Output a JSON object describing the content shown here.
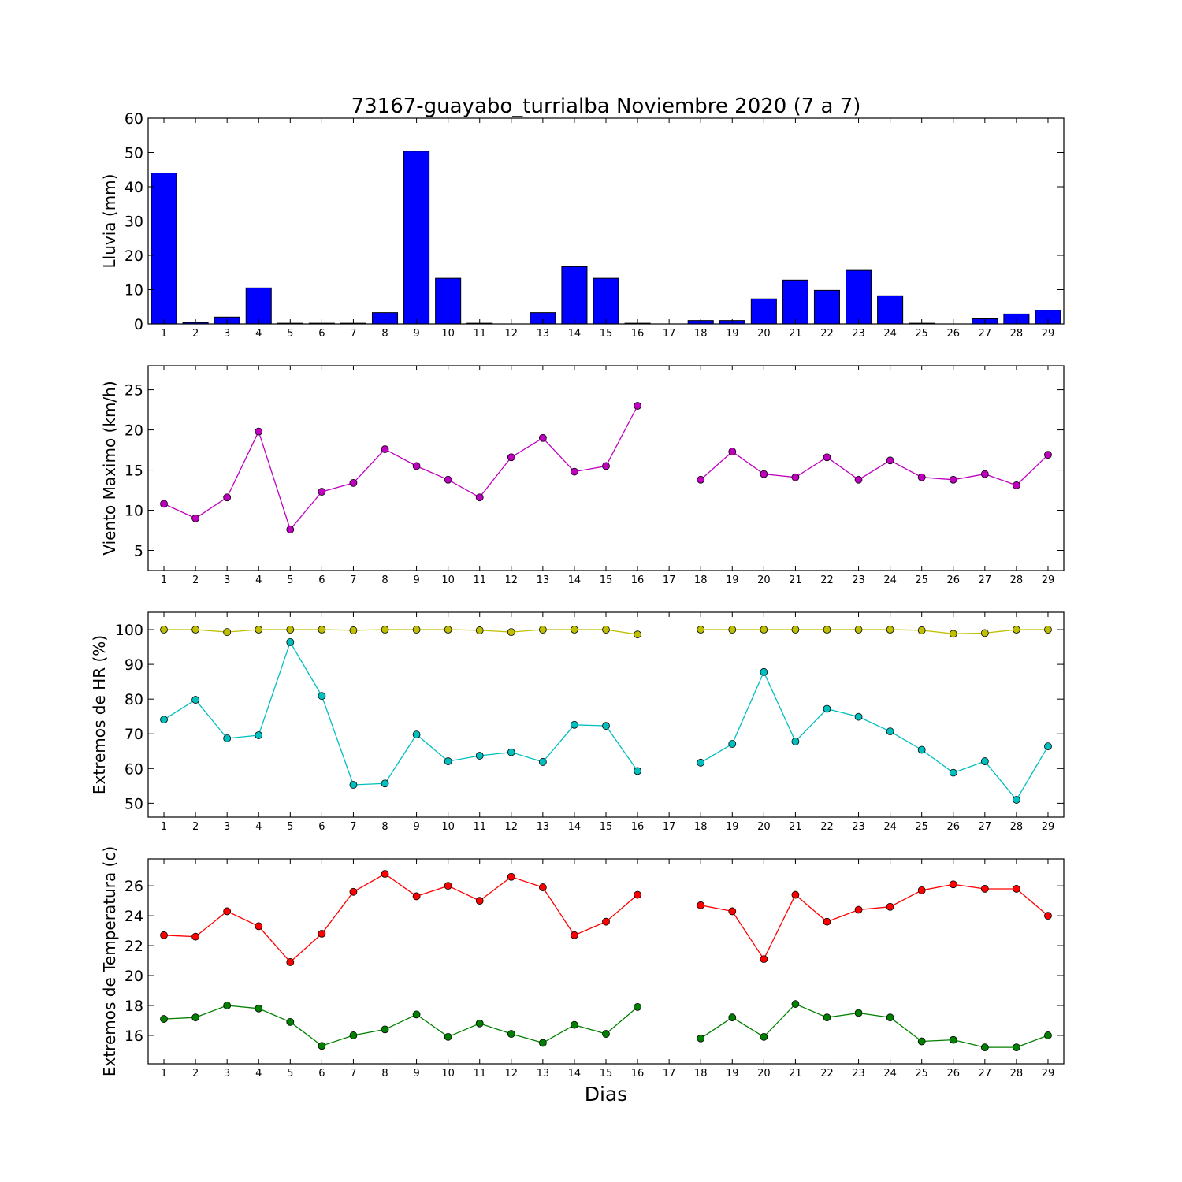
{
  "title": "73167-guayabo_turrialba Noviembre 2020  (7 a 7)",
  "xlabel": "Dias",
  "chart_data": [
    {
      "type": "bar",
      "ylabel": "Lluvia (mm)",
      "ylim": [
        0,
        60
      ],
      "yticks": [
        0,
        10,
        20,
        30,
        40,
        50,
        60
      ],
      "categories": [
        1,
        2,
        3,
        4,
        5,
        6,
        7,
        8,
        9,
        10,
        11,
        12,
        13,
        14,
        15,
        16,
        17,
        18,
        19,
        20,
        21,
        22,
        23,
        24,
        25,
        26,
        27,
        28,
        29
      ],
      "values": [
        44,
        0.4,
        2,
        10.5,
        0.2,
        0.2,
        0.2,
        3.3,
        50.4,
        13.3,
        0.2,
        0,
        3.3,
        16.7,
        13.3,
        0.2,
        null,
        1,
        1,
        7.3,
        12.8,
        9.8,
        15.6,
        8.2,
        0.2,
        0,
        1.5,
        2.9,
        4
      ],
      "series": [
        {
          "color": "#0000ff"
        }
      ]
    },
    {
      "type": "line",
      "ylabel": "Viento Maximo (km/h)",
      "ylim": [
        2.5,
        28
      ],
      "yticks": [
        5,
        10,
        15,
        20,
        25
      ],
      "x": [
        1,
        2,
        3,
        4,
        5,
        6,
        7,
        8,
        9,
        10,
        11,
        12,
        13,
        14,
        15,
        16,
        17,
        18,
        19,
        20,
        21,
        22,
        23,
        24,
        25,
        26,
        27,
        28,
        29
      ],
      "series": [
        {
          "color": "#bf00bf",
          "values": [
            10.8,
            9,
            11.6,
            19.8,
            7.6,
            12.3,
            13.4,
            17.6,
            15.5,
            13.8,
            11.6,
            16.6,
            19,
            14.8,
            15.5,
            23,
            null,
            13.8,
            17.3,
            14.5,
            14.1,
            16.6,
            13.8,
            16.2,
            14.1,
            13.8,
            14.5,
            13.1,
            16.9
          ]
        }
      ]
    },
    {
      "type": "line",
      "ylabel": "Extremos de HR (%)",
      "ylim": [
        46,
        105
      ],
      "yticks": [
        50,
        60,
        70,
        80,
        90,
        100
      ],
      "x": [
        1,
        2,
        3,
        4,
        5,
        6,
        7,
        8,
        9,
        10,
        11,
        12,
        13,
        14,
        15,
        16,
        17,
        18,
        19,
        20,
        21,
        22,
        23,
        24,
        25,
        26,
        27,
        28,
        29
      ],
      "series": [
        {
          "color": "#bfbf00",
          "values": [
            100,
            100,
            99.3,
            100,
            100,
            100,
            99.8,
            100,
            100,
            100,
            99.8,
            99.3,
            100,
            100,
            100,
            98.6,
            null,
            100,
            100,
            100,
            100,
            100,
            100,
            100,
            99.8,
            98.8,
            99,
            100,
            100
          ]
        },
        {
          "color": "#00bfbf",
          "values": [
            74.1,
            79.8,
            68.7,
            69.6,
            96.4,
            80.9,
            55.3,
            55.7,
            69.8,
            62.1,
            63.7,
            64.7,
            61.9,
            72.6,
            72.3,
            59.3,
            null,
            61.7,
            67.1,
            87.8,
            67.8,
            77.2,
            74.9,
            70.7,
            65.4,
            58.8,
            62.1,
            51,
            66.4
          ]
        }
      ]
    },
    {
      "type": "line",
      "ylabel": "Extremos de Temperatura (c)",
      "ylim": [
        14.1,
        27.8
      ],
      "yticks": [
        16,
        18,
        20,
        22,
        24,
        26
      ],
      "x": [
        1,
        2,
        3,
        4,
        5,
        6,
        7,
        8,
        9,
        10,
        11,
        12,
        13,
        14,
        15,
        16,
        17,
        18,
        19,
        20,
        21,
        22,
        23,
        24,
        25,
        26,
        27,
        28,
        29
      ],
      "series": [
        {
          "color": "#ff0000",
          "values": [
            22.7,
            22.6,
            24.3,
            23.3,
            20.9,
            22.8,
            25.6,
            26.8,
            25.3,
            26,
            25,
            26.6,
            25.9,
            22.7,
            23.6,
            25.4,
            null,
            24.7,
            24.3,
            21.1,
            25.4,
            23.6,
            24.4,
            24.6,
            25.7,
            26.1,
            25.8,
            25.8,
            24
          ]
        },
        {
          "color": "#008000",
          "values": [
            17.1,
            17.2,
            18,
            17.8,
            16.9,
            15.3,
            16,
            16.4,
            17.4,
            15.9,
            16.8,
            16.1,
            15.5,
            16.7,
            16.1,
            17.9,
            null,
            15.8,
            17.2,
            15.9,
            18.1,
            17.2,
            17.5,
            17.2,
            15.6,
            15.7,
            15.2,
            15.2,
            16
          ]
        }
      ]
    }
  ]
}
